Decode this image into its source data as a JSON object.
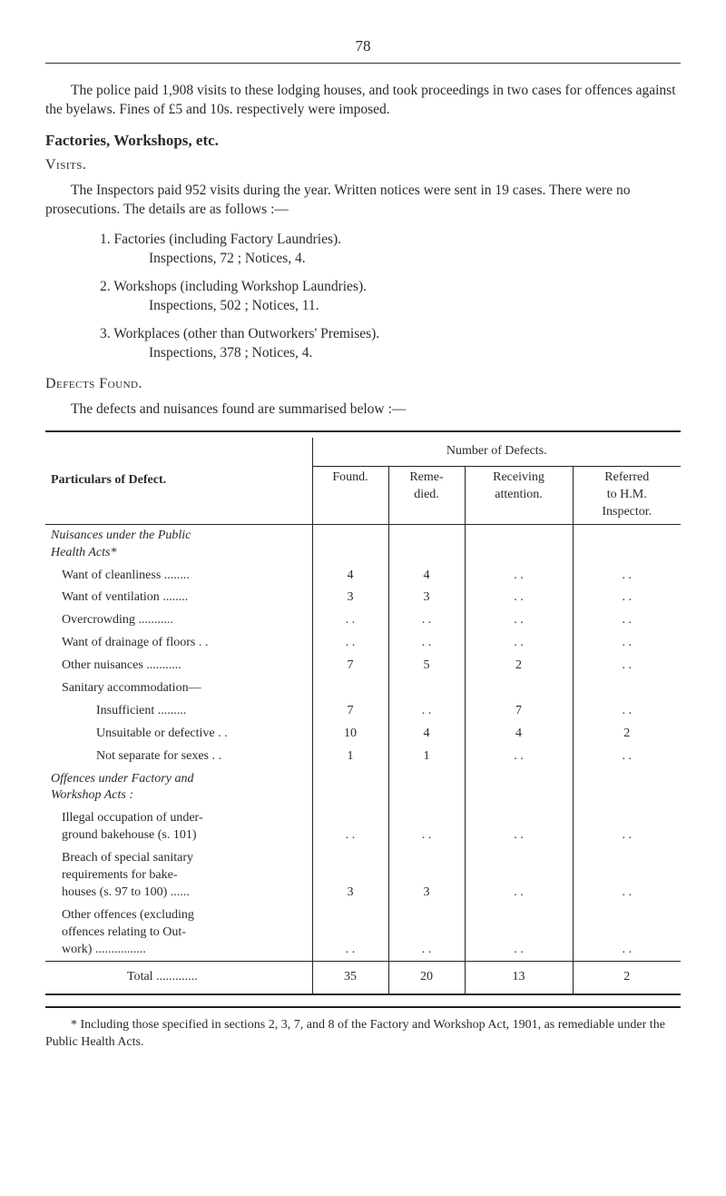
{
  "page_number": "78",
  "intro_para": "The police paid 1,908 visits to these lodging houses, and took proceedings in two cases for offences against the byelaws. Fines of £5 and 10s. respectively were imposed.",
  "section1_title": "Factories, Workshops, etc.",
  "visits_label": "Visits.",
  "visits_para": "The Inspectors paid 952 visits during the year. Written notices were sent in 19 cases. There were no prosecutions. The details are as follows :—",
  "insp_items": [
    {
      "num": "1.",
      "title": "Factories (including Factory Laundries).",
      "sub": "Inspections, 72 ;  Notices, 4."
    },
    {
      "num": "2.",
      "title": "Workshops (including Workshop Laundries).",
      "sub": "Inspections, 502 ;  Notices, 11."
    },
    {
      "num": "3.",
      "title": "Workplaces (other than Outworkers' Premises).",
      "sub": "Inspections, 378 ;  Notices, 4."
    }
  ],
  "defects_found_label": "Defects Found.",
  "defects_intro": "The defects and nuisances found are summarised below :—",
  "table": {
    "col_particulars": "Particulars of Defect.",
    "num_defects_label": "Number of Defects.",
    "col_found": "Found.",
    "col_reme": "Reme-\ndied.",
    "col_receiving": "Receiving\nattention.",
    "col_referred": "Referred\nto H.M.\nInspector.",
    "rows": [
      {
        "label": "Nuisances under the Public\n  Health Acts*",
        "italic": true,
        "found": "",
        "reme": "",
        "rec": "",
        "ref": ""
      },
      {
        "label": "Want of cleanliness ........",
        "indent": 1,
        "found": "4",
        "reme": "4",
        "rec": ". .",
        "ref": ". ."
      },
      {
        "label": "Want of ventilation ........",
        "indent": 1,
        "found": "3",
        "reme": "3",
        "rec": ". .",
        "ref": ". ."
      },
      {
        "label": "Overcrowding  ...........",
        "indent": 1,
        "found": ". .",
        "reme": ". .",
        "rec": ". .",
        "ref": ". ."
      },
      {
        "label": "Want of drainage of floors . .",
        "indent": 1,
        "found": ". .",
        "reme": ". .",
        "rec": ". .",
        "ref": ". ."
      },
      {
        "label": "Other nuisances ...........",
        "indent": 1,
        "found": "7",
        "reme": "5",
        "rec": "2",
        "ref": ". ."
      },
      {
        "label": "Sanitary accommodation—",
        "indent": 1,
        "found": "",
        "reme": "",
        "rec": "",
        "ref": ""
      },
      {
        "label": "Insufficient  .........",
        "indent": 2,
        "found": "7",
        "reme": ". .",
        "rec": "7",
        "ref": ". ."
      },
      {
        "label": "Unsuitable or defective . .",
        "indent": 2,
        "found": "10",
        "reme": "4",
        "rec": "4",
        "ref": "2"
      },
      {
        "label": "Not separate for sexes . .",
        "indent": 2,
        "found": "1",
        "reme": "1",
        "rec": ". .",
        "ref": ". ."
      },
      {
        "label": "Offences  under  Factory  and\n  Workshop Acts :",
        "italic": true,
        "found": "",
        "reme": "",
        "rec": "",
        "ref": ""
      },
      {
        "label": "Illegal occupation of under-\n  ground bakehouse (s. 101)",
        "indent": 1,
        "found": ". .",
        "reme": ". .",
        "rec": ". .",
        "ref": ". ."
      },
      {
        "label": "Breach of special sanitary\n  requirements  for  bake-\n  houses (s. 97 to 100) ......",
        "indent": 1,
        "found": "3",
        "reme": "3",
        "rec": ". .",
        "ref": ". ."
      },
      {
        "label": "Other  offences  (excluding\n  offences relating to Out-\n  work) ................",
        "indent": 1,
        "found": ". .",
        "reme": ". .",
        "rec": ". .",
        "ref": ". ."
      }
    ],
    "total_label": "Total  .............",
    "total": {
      "found": "35",
      "reme": "20",
      "rec": "13",
      "ref": "2"
    }
  },
  "footnote": "* Including those specified in sections 2, 3, 7, and 8 of the Factory and Workshop Act, 1901, as remediable under the Public Health Acts."
}
